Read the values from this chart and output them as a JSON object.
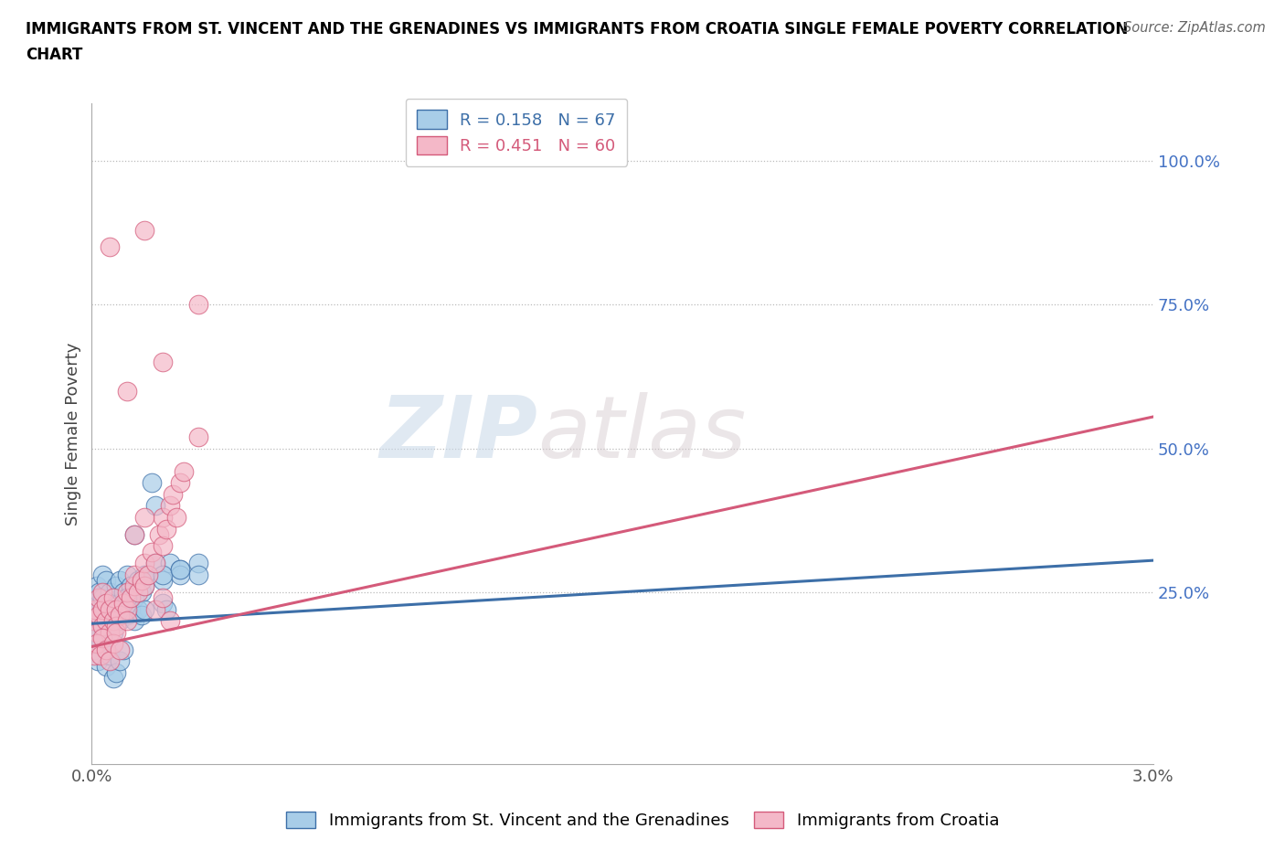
{
  "title_line1": "IMMIGRANTS FROM ST. VINCENT AND THE GRENADINES VS IMMIGRANTS FROM CROATIA SINGLE FEMALE POVERTY CORRELATION",
  "title_line2": "CHART",
  "source_text": "Source: ZipAtlas.com",
  "ylabel": "Single Female Poverty",
  "xlim": [
    0.0,
    0.03
  ],
  "ylim": [
    -0.05,
    1.1
  ],
  "xtick_positions": [
    0.0,
    0.005,
    0.01,
    0.015,
    0.02,
    0.025,
    0.03
  ],
  "xticklabels": [
    "0.0%",
    "",
    "",
    "",
    "",
    "",
    "3.0%"
  ],
  "ytick_positions": [
    0.0,
    0.25,
    0.5,
    0.75,
    1.0
  ],
  "yticklabels": [
    "",
    "25.0%",
    "50.0%",
    "75.0%",
    "100.0%"
  ],
  "color_blue": "#a8cde8",
  "color_pink": "#f4b8c8",
  "line_blue": "#3d6fa8",
  "line_pink": "#d45a7a",
  "R_blue": 0.158,
  "N_blue": 67,
  "R_pink": 0.451,
  "N_pink": 60,
  "legend_label_blue": "Immigrants from St. Vincent and the Grenadines",
  "legend_label_pink": "Immigrants from Croatia",
  "watermark_zip": "ZIP",
  "watermark_atlas": "atlas",
  "blue_line_x": [
    0.0,
    0.03
  ],
  "blue_line_y": [
    0.195,
    0.305
  ],
  "pink_line_x": [
    0.0,
    0.03
  ],
  "pink_line_y": [
    0.155,
    0.555
  ],
  "blue_x": [
    5e-05,
    0.0001,
    0.00015,
    0.00015,
    0.0002,
    0.0002,
    0.0002,
    0.0003,
    0.0003,
    0.0003,
    0.0004,
    0.0004,
    0.0004,
    0.0005,
    0.0005,
    0.0005,
    0.0006,
    0.0006,
    0.0006,
    0.0007,
    0.0007,
    0.0008,
    0.0008,
    0.0008,
    0.0009,
    0.0009,
    0.001,
    0.001,
    0.001,
    0.0011,
    0.0011,
    0.0012,
    0.0012,
    0.0013,
    0.0013,
    0.0014,
    0.0014,
    0.0015,
    0.0015,
    0.0016,
    0.0017,
    0.0018,
    0.002,
    0.002,
    0.0021,
    0.0022,
    0.0025,
    0.0025,
    0.003,
    0.003,
    8e-05,
    0.00012,
    0.00018,
    0.00025,
    0.0003,
    0.0004,
    0.0005,
    0.0006,
    0.0007,
    0.0008,
    0.0009,
    0.001,
    0.0012,
    0.0015,
    0.0018,
    0.002,
    0.0025
  ],
  "blue_y": [
    0.22,
    0.24,
    0.2,
    0.26,
    0.22,
    0.25,
    0.18,
    0.21,
    0.24,
    0.28,
    0.19,
    0.23,
    0.27,
    0.22,
    0.2,
    0.25,
    0.21,
    0.24,
    0.18,
    0.22,
    0.26,
    0.2,
    0.23,
    0.27,
    0.22,
    0.25,
    0.21,
    0.24,
    0.28,
    0.22,
    0.26,
    0.2,
    0.24,
    0.22,
    0.27,
    0.21,
    0.25,
    0.22,
    0.26,
    0.28,
    0.44,
    0.3,
    0.27,
    0.23,
    0.22,
    0.3,
    0.29,
    0.28,
    0.3,
    0.28,
    0.15,
    0.17,
    0.13,
    0.16,
    0.19,
    0.12,
    0.14,
    0.1,
    0.11,
    0.13,
    0.15,
    0.24,
    0.35,
    0.28,
    0.4,
    0.28,
    0.29
  ],
  "pink_x": [
    5e-05,
    0.0001,
    0.00015,
    0.0002,
    0.0002,
    0.0003,
    0.0003,
    0.0003,
    0.0004,
    0.0004,
    0.0005,
    0.0005,
    0.0006,
    0.0006,
    0.0007,
    0.0007,
    0.0008,
    0.0009,
    0.001,
    0.001,
    0.0011,
    0.0012,
    0.0012,
    0.0013,
    0.0014,
    0.0015,
    0.0015,
    0.0016,
    0.0017,
    0.0018,
    0.0019,
    0.002,
    0.002,
    0.0021,
    0.0022,
    0.0023,
    0.0024,
    0.0025,
    0.0026,
    0.003,
    8e-05,
    0.00015,
    0.00025,
    0.0003,
    0.0004,
    0.0005,
    0.0006,
    0.0007,
    0.0008,
    0.001,
    0.0012,
    0.0015,
    0.0018,
    0.002,
    0.0022,
    0.003,
    0.0005,
    0.001,
    0.0015,
    0.002
  ],
  "pink_y": [
    0.2,
    0.22,
    0.18,
    0.21,
    0.24,
    0.19,
    0.22,
    0.25,
    0.2,
    0.23,
    0.18,
    0.22,
    0.2,
    0.24,
    0.22,
    0.19,
    0.21,
    0.23,
    0.22,
    0.25,
    0.24,
    0.26,
    0.28,
    0.25,
    0.27,
    0.26,
    0.3,
    0.28,
    0.32,
    0.3,
    0.35,
    0.38,
    0.33,
    0.36,
    0.4,
    0.42,
    0.38,
    0.44,
    0.46,
    0.52,
    0.14,
    0.16,
    0.14,
    0.17,
    0.15,
    0.13,
    0.16,
    0.18,
    0.15,
    0.2,
    0.35,
    0.38,
    0.22,
    0.24,
    0.2,
    0.75,
    0.85,
    0.6,
    0.88,
    0.65
  ]
}
